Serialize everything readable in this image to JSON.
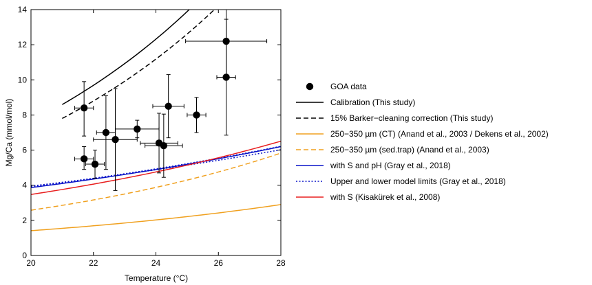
{
  "chart_data": {
    "type": "scatter",
    "xlabel": "Temperature (°C)",
    "ylabel": "Mg/Ca (mmol/mol)",
    "xlim": [
      20,
      28
    ],
    "ylim": [
      0,
      14
    ],
    "xticks": [
      20,
      22,
      24,
      26,
      28
    ],
    "yticks": [
      0,
      2,
      4,
      6,
      8,
      10,
      12,
      14
    ],
    "grid": false,
    "legend_position": "right",
    "points": {
      "name": "GOA data",
      "color": "#000000",
      "data": [
        {
          "x": 21.7,
          "y": 8.4,
          "xerr": 0.3,
          "yerr_low": 1.6,
          "yerr_high": 1.5
        },
        {
          "x": 21.7,
          "y": 5.5,
          "xerr": 0.3,
          "yerr_low": 0.6,
          "yerr_high": 0.7
        },
        {
          "x": 22.05,
          "y": 5.2,
          "xerr": 0.3,
          "yerr_low": 0.8,
          "yerr_high": 0.8
        },
        {
          "x": 22.4,
          "y": 7.0,
          "xerr": 0.3,
          "yerr_low": 2.1,
          "yerr_high": 2.1
        },
        {
          "x": 22.7,
          "y": 6.6,
          "xerr": 0.7,
          "yerr_low": 2.9,
          "yerr_high": 2.9
        },
        {
          "x": 23.4,
          "y": 7.2,
          "xerr": 0.7,
          "yerr_low": 0.5,
          "yerr_high": 0.5
        },
        {
          "x": 24.1,
          "y": 6.4,
          "xerr": 0.6,
          "yerr_low": 1.7,
          "yerr_high": 1.7
        },
        {
          "x": 24.25,
          "y": 6.25,
          "xerr": 0.6,
          "yerr_low": 1.8,
          "yerr_high": 1.8
        },
        {
          "x": 24.4,
          "y": 8.5,
          "xerr": 0.5,
          "yerr_low": 1.8,
          "yerr_high": 1.8
        },
        {
          "x": 25.3,
          "y": 8.0,
          "xerr": 0.3,
          "yerr_low": 1.0,
          "yerr_high": 1.0
        },
        {
          "x": 26.25,
          "y": 12.2,
          "xerr": 1.3,
          "yerr_low": 2.0,
          "yerr_high": 1.9
        },
        {
          "x": 26.25,
          "y": 10.15,
          "xerr": 0.3,
          "yerr_low": 3.3,
          "yerr_high": 3.3
        }
      ]
    },
    "series": [
      {
        "name": "Calibration (This study)",
        "color": "#000000",
        "dash": "solid",
        "x": [
          21,
          27.5
        ],
        "A": 0.12,
        "B": 0.6915
      },
      {
        "name": "15% Barker-cleaning correction (This study)",
        "color": "#000000",
        "dash": "dashed",
        "x": [
          21,
          27.5
        ],
        "A": 0.12,
        "B": 0.6278
      },
      {
        "name": "250-350 µm (CT) (Anand et al., 2003 / Dekens et al., 2002)",
        "color": "#F0A01E",
        "dash": "solid",
        "x": [
          20,
          28
        ],
        "A": 0.09,
        "B": 0.2333
      },
      {
        "name": "250-350 µm (sed.trap) (Anand et al., 2003)",
        "color": "#F0A01E",
        "dash": "dashed",
        "x": [
          20,
          28
        ],
        "A": 0.102,
        "B": 0.3352
      },
      {
        "name": "with S and pH (Gray et al., 2018)",
        "color": "#0A14C8",
        "dash": "solid",
        "x": [
          20,
          28
        ],
        "A": 0.059,
        "B": 1.1877
      },
      {
        "name": "Upper and lower model limits (Gray et al., 2018)",
        "color": "#0A14C8",
        "dash": "dotted",
        "x": [
          20,
          28
        ],
        "A": 0.0525,
        "B": 1.3841
      },
      {
        "name": "Upper and lower model limits (Gray et al., 2018)",
        "color": "#0A14C8",
        "dash": "dotted",
        "x": [
          20,
          28
        ],
        "A": 0.058,
        "B": 1.2264
      },
      {
        "name": "with S (Kisakürek et al., 2008)",
        "color": "#E81E1E",
        "dash": "solid",
        "x": [
          20,
          28
        ],
        "A": 0.0785,
        "B": 0.7226
      }
    ],
    "legend": [
      {
        "label": "GOA data",
        "marker": "dot",
        "color": "#000000"
      },
      {
        "label": "Calibration (This study)",
        "marker": "line",
        "color": "#000000",
        "dash": "solid"
      },
      {
        "label": "15% Barker−cleaning correction (This study)",
        "marker": "line",
        "color": "#000000",
        "dash": "dashed"
      },
      {
        "label": "250−350 µm (CT) (Anand et al., 2003 / Dekens et al., 2002)",
        "marker": "line",
        "color": "#F0A01E",
        "dash": "solid"
      },
      {
        "label": "250−350 µm (sed.trap) (Anand et al., 2003)",
        "marker": "line",
        "color": "#F0A01E",
        "dash": "dashed"
      },
      {
        "label": "with S and pH (Gray et al., 2018)",
        "marker": "line",
        "color": "#0A14C8",
        "dash": "solid"
      },
      {
        "label": "Upper and lower model limits (Gray et al., 2018)",
        "marker": "line",
        "color": "#0A14C8",
        "dash": "dotted"
      },
      {
        "label": "with S (Kisakürek et al., 2008)",
        "marker": "line",
        "color": "#E81E1E",
        "dash": "solid"
      }
    ]
  }
}
